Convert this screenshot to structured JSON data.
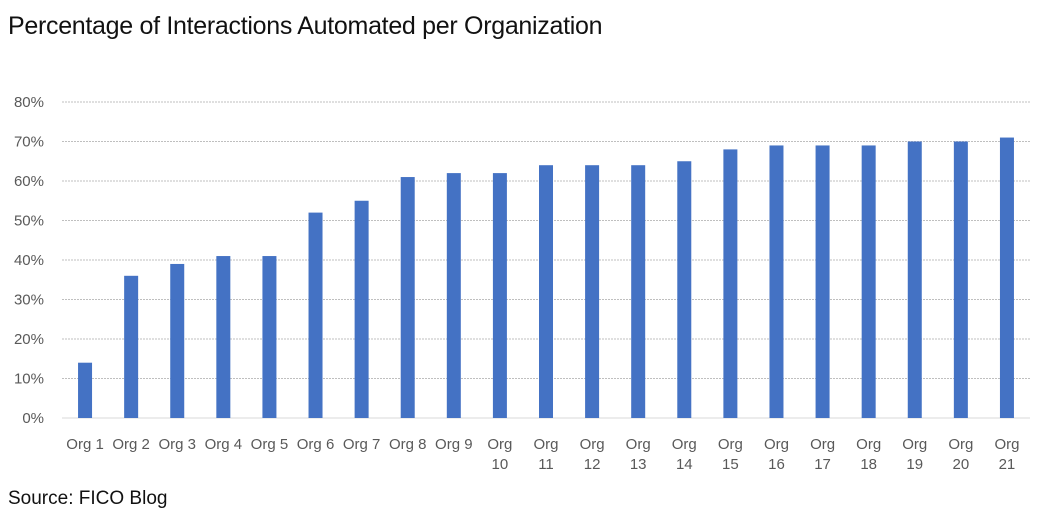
{
  "chart_data": {
    "type": "bar",
    "title": "Percentage of Interactions Automated per Organization",
    "source": "Source: FICO Blog",
    "categories": [
      "Org 1",
      "Org 2",
      "Org 3",
      "Org 4",
      "Org 5",
      "Org 6",
      "Org 7",
      "Org 8",
      "Org 9",
      "Org 10",
      "Org 11",
      "Org 12",
      "Org 13",
      "Org 14",
      "Org 15",
      "Org 16",
      "Org 17",
      "Org 18",
      "Org 19",
      "Org 20",
      "Org 21"
    ],
    "values": [
      14,
      36,
      39,
      41,
      41,
      52,
      55,
      61,
      62,
      62,
      64,
      64,
      64,
      65,
      68,
      69,
      69,
      69,
      70,
      70,
      71
    ],
    "ylim": [
      0,
      80
    ],
    "yticks": [
      "0%",
      "10%",
      "20%",
      "30%",
      "40%",
      "50%",
      "60%",
      "70%",
      "80%"
    ],
    "grid": true,
    "bar_color": "#4472C4",
    "grid_color": "#bfbfbf",
    "axis_color": "#d9d9d9"
  }
}
